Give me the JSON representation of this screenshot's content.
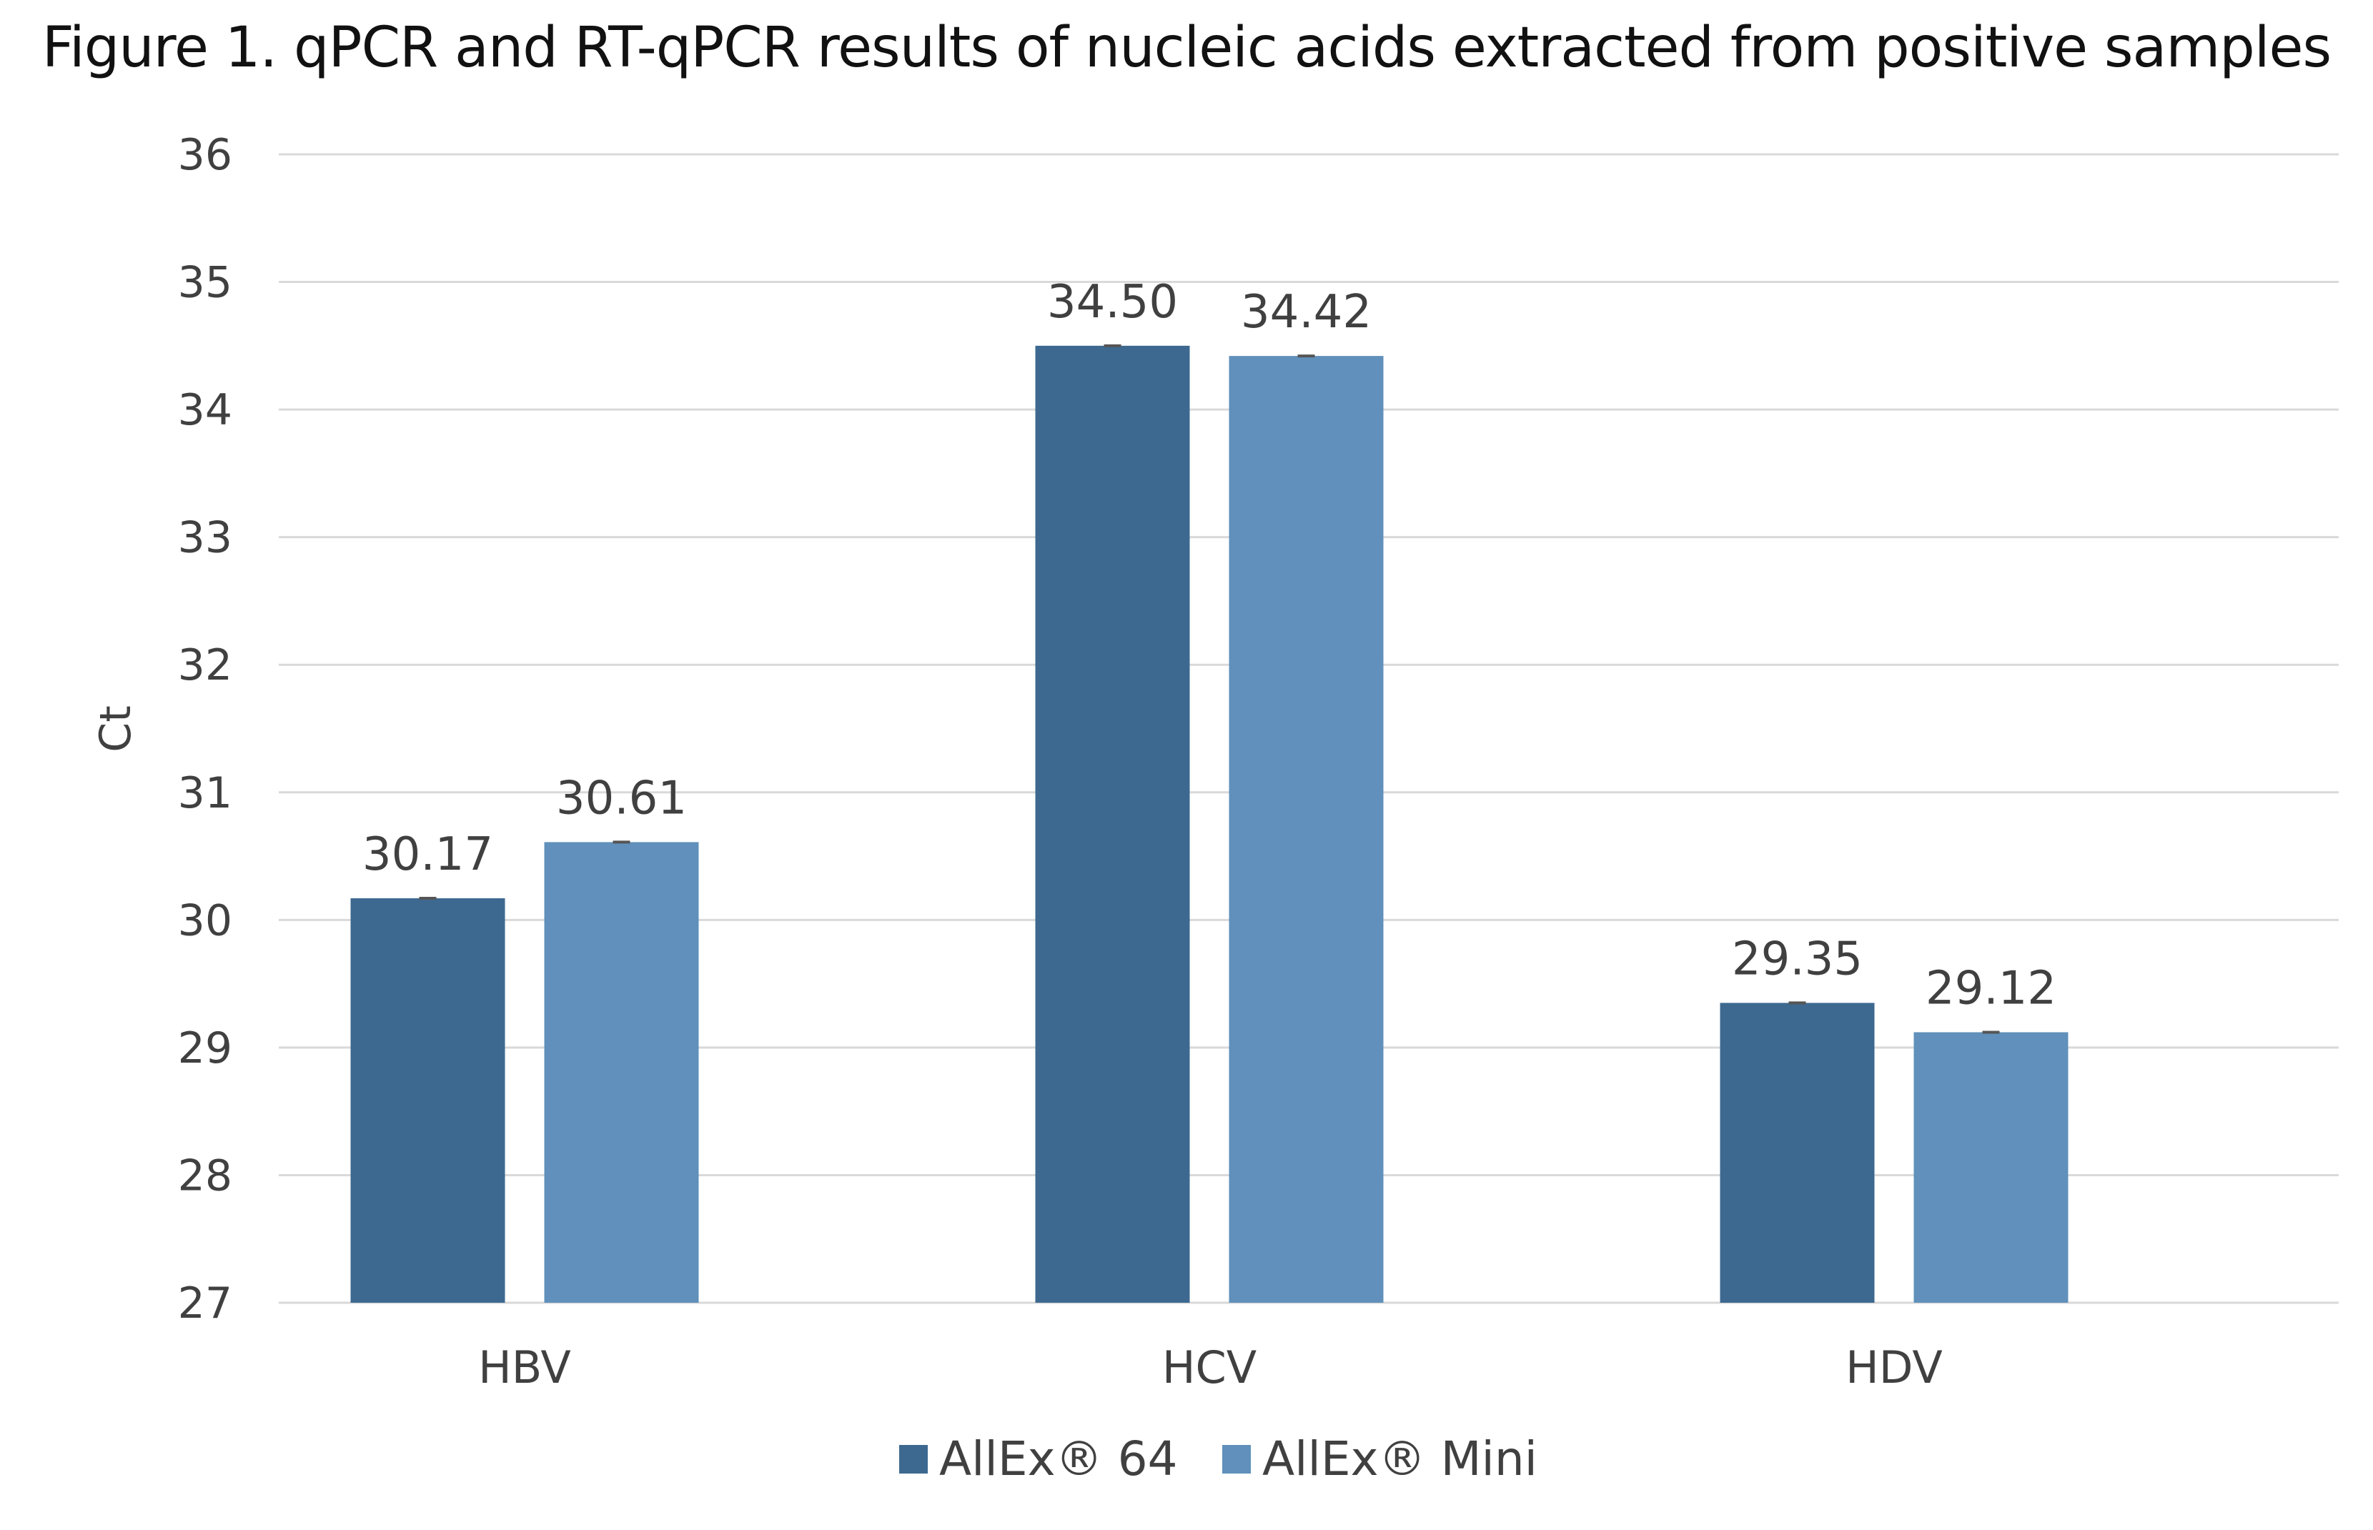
{
  "chart_data": {
    "type": "bar",
    "title": "Figure 1. qPCR and RT-qPCR results of nucleic acids extracted from positive samples",
    "ylabel": "Ct",
    "xlabel": "",
    "ylim": [
      27,
      36
    ],
    "yticks": [
      27,
      28,
      29,
      30,
      31,
      32,
      33,
      34,
      35,
      36
    ],
    "categories": [
      "HBV",
      "HCV",
      "HDV"
    ],
    "series": [
      {
        "name": "AllEx® 64",
        "color": "#3d6990",
        "values": [
          30.17,
          34.5,
          29.35
        ],
        "labels": [
          "30.17",
          "34.50",
          "29.35"
        ]
      },
      {
        "name": "AllEx® Mini",
        "color": "#6090bb",
        "values": [
          30.61,
          34.42,
          29.12
        ],
        "labels": [
          "30.61",
          "34.42",
          "29.12"
        ]
      }
    ],
    "grid": true,
    "error_bars": true,
    "legend_position": "bottom",
    "gridline_color": "#d9d9d9",
    "errorbar_color": "#555555"
  }
}
